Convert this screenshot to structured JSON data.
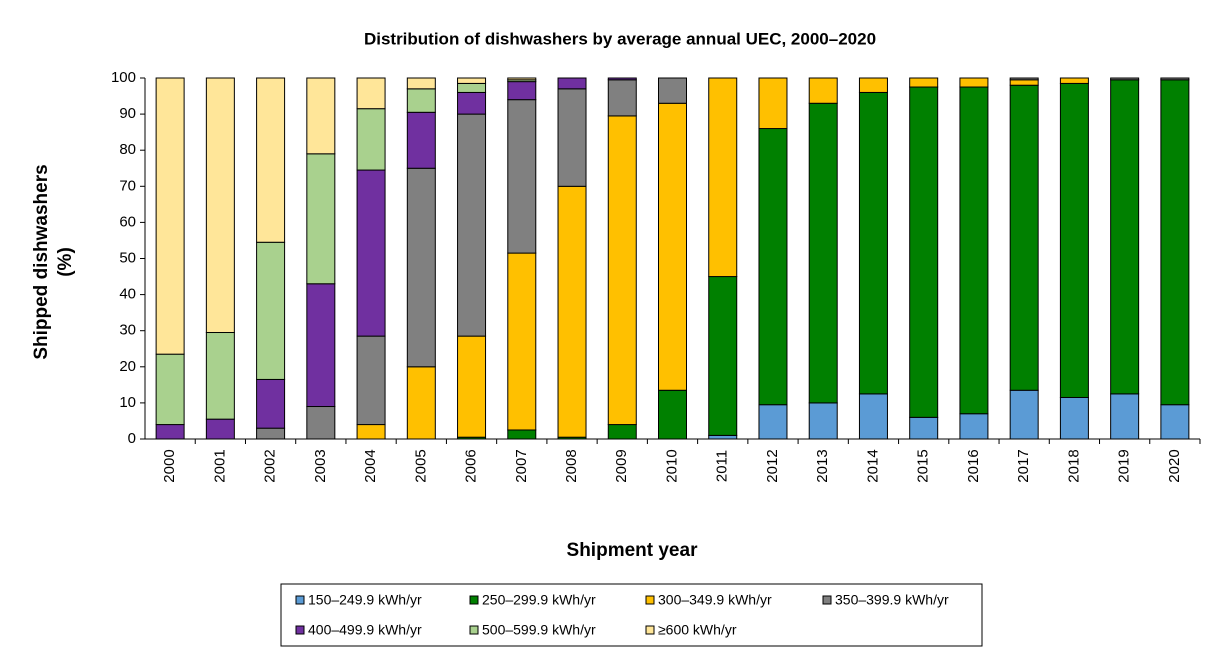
{
  "chart_data": {
    "type": "stacked_bar",
    "title": "Distribution  of dishwashers by average annual UEC, 2000–2020",
    "xlabel": "Shipment year",
    "ylabel": [
      "Shipped dishwashers",
      "(%)"
    ],
    "categories": [
      "2000",
      "2001",
      "2002",
      "2003",
      "2004",
      "2005",
      "2006",
      "2007",
      "2008",
      "2009",
      "2010",
      "2011",
      "2012",
      "2013",
      "2014",
      "2015",
      "2016",
      "2017",
      "2018",
      "2019",
      "2020"
    ],
    "series": [
      {
        "name": "150–249.9 kWh/yr",
        "color": "#5b9bd5",
        "values": [
          0,
          0,
          0,
          0,
          0,
          0,
          0,
          0,
          0,
          0,
          0,
          1,
          9.5,
          10,
          12.5,
          6,
          7,
          13.5,
          11.5,
          12.5,
          9.5
        ]
      },
      {
        "name": "250–299.9 kWh/yr",
        "color": "#008000",
        "values": [
          0,
          0,
          0,
          0,
          0,
          0,
          0.5,
          2.5,
          0.5,
          4,
          13.5,
          44,
          76.5,
          83,
          83.5,
          91.5,
          90.5,
          84.5,
          87,
          87,
          90
        ]
      },
      {
        "name": "300–349.9 kWh/yr",
        "color": "#ffc000",
        "values": [
          0,
          0,
          0,
          0,
          4,
          20,
          28,
          49,
          69.5,
          85.5,
          79.5,
          55,
          14,
          7,
          4,
          2.5,
          2.5,
          1.5,
          1.5,
          0,
          0
        ]
      },
      {
        "name": "350–399.9 kWh/yr",
        "color": "#808080",
        "values": [
          0,
          0,
          3,
          9,
          24.5,
          55,
          61.5,
          42.5,
          27,
          10,
          7,
          0,
          0,
          0,
          0,
          0,
          0,
          0.5,
          0,
          0.5,
          0.5
        ]
      },
      {
        "name": "400–499.9 kWh/yr",
        "color": "#7030a0",
        "values": [
          4,
          5.5,
          13.5,
          34,
          46,
          15.5,
          6,
          5,
          3,
          0.5,
          0,
          0,
          0,
          0,
          0,
          0,
          0,
          0,
          0,
          0,
          0
        ]
      },
      {
        "name": "500–599.9 kWh/yr",
        "color": "#a9d18e",
        "values": [
          19.5,
          24,
          38,
          36,
          17,
          6.5,
          2.5,
          0.5,
          0,
          0,
          0,
          0,
          0,
          0,
          0,
          0,
          0,
          0,
          0,
          0,
          0
        ]
      },
      {
        "name": "≥600 kWh/yr",
        "color": "#ffe699",
        "values": [
          76.5,
          70.5,
          45.5,
          21,
          8.5,
          3,
          1.5,
          0.5,
          0,
          0,
          0,
          0,
          0,
          0,
          0,
          0,
          0,
          0,
          0,
          0,
          0
        ]
      }
    ],
    "ylim": [
      0,
      100
    ],
    "yticks": [
      0,
      10,
      20,
      30,
      40,
      50,
      60,
      70,
      80,
      90,
      100
    ],
    "grid": false
  }
}
